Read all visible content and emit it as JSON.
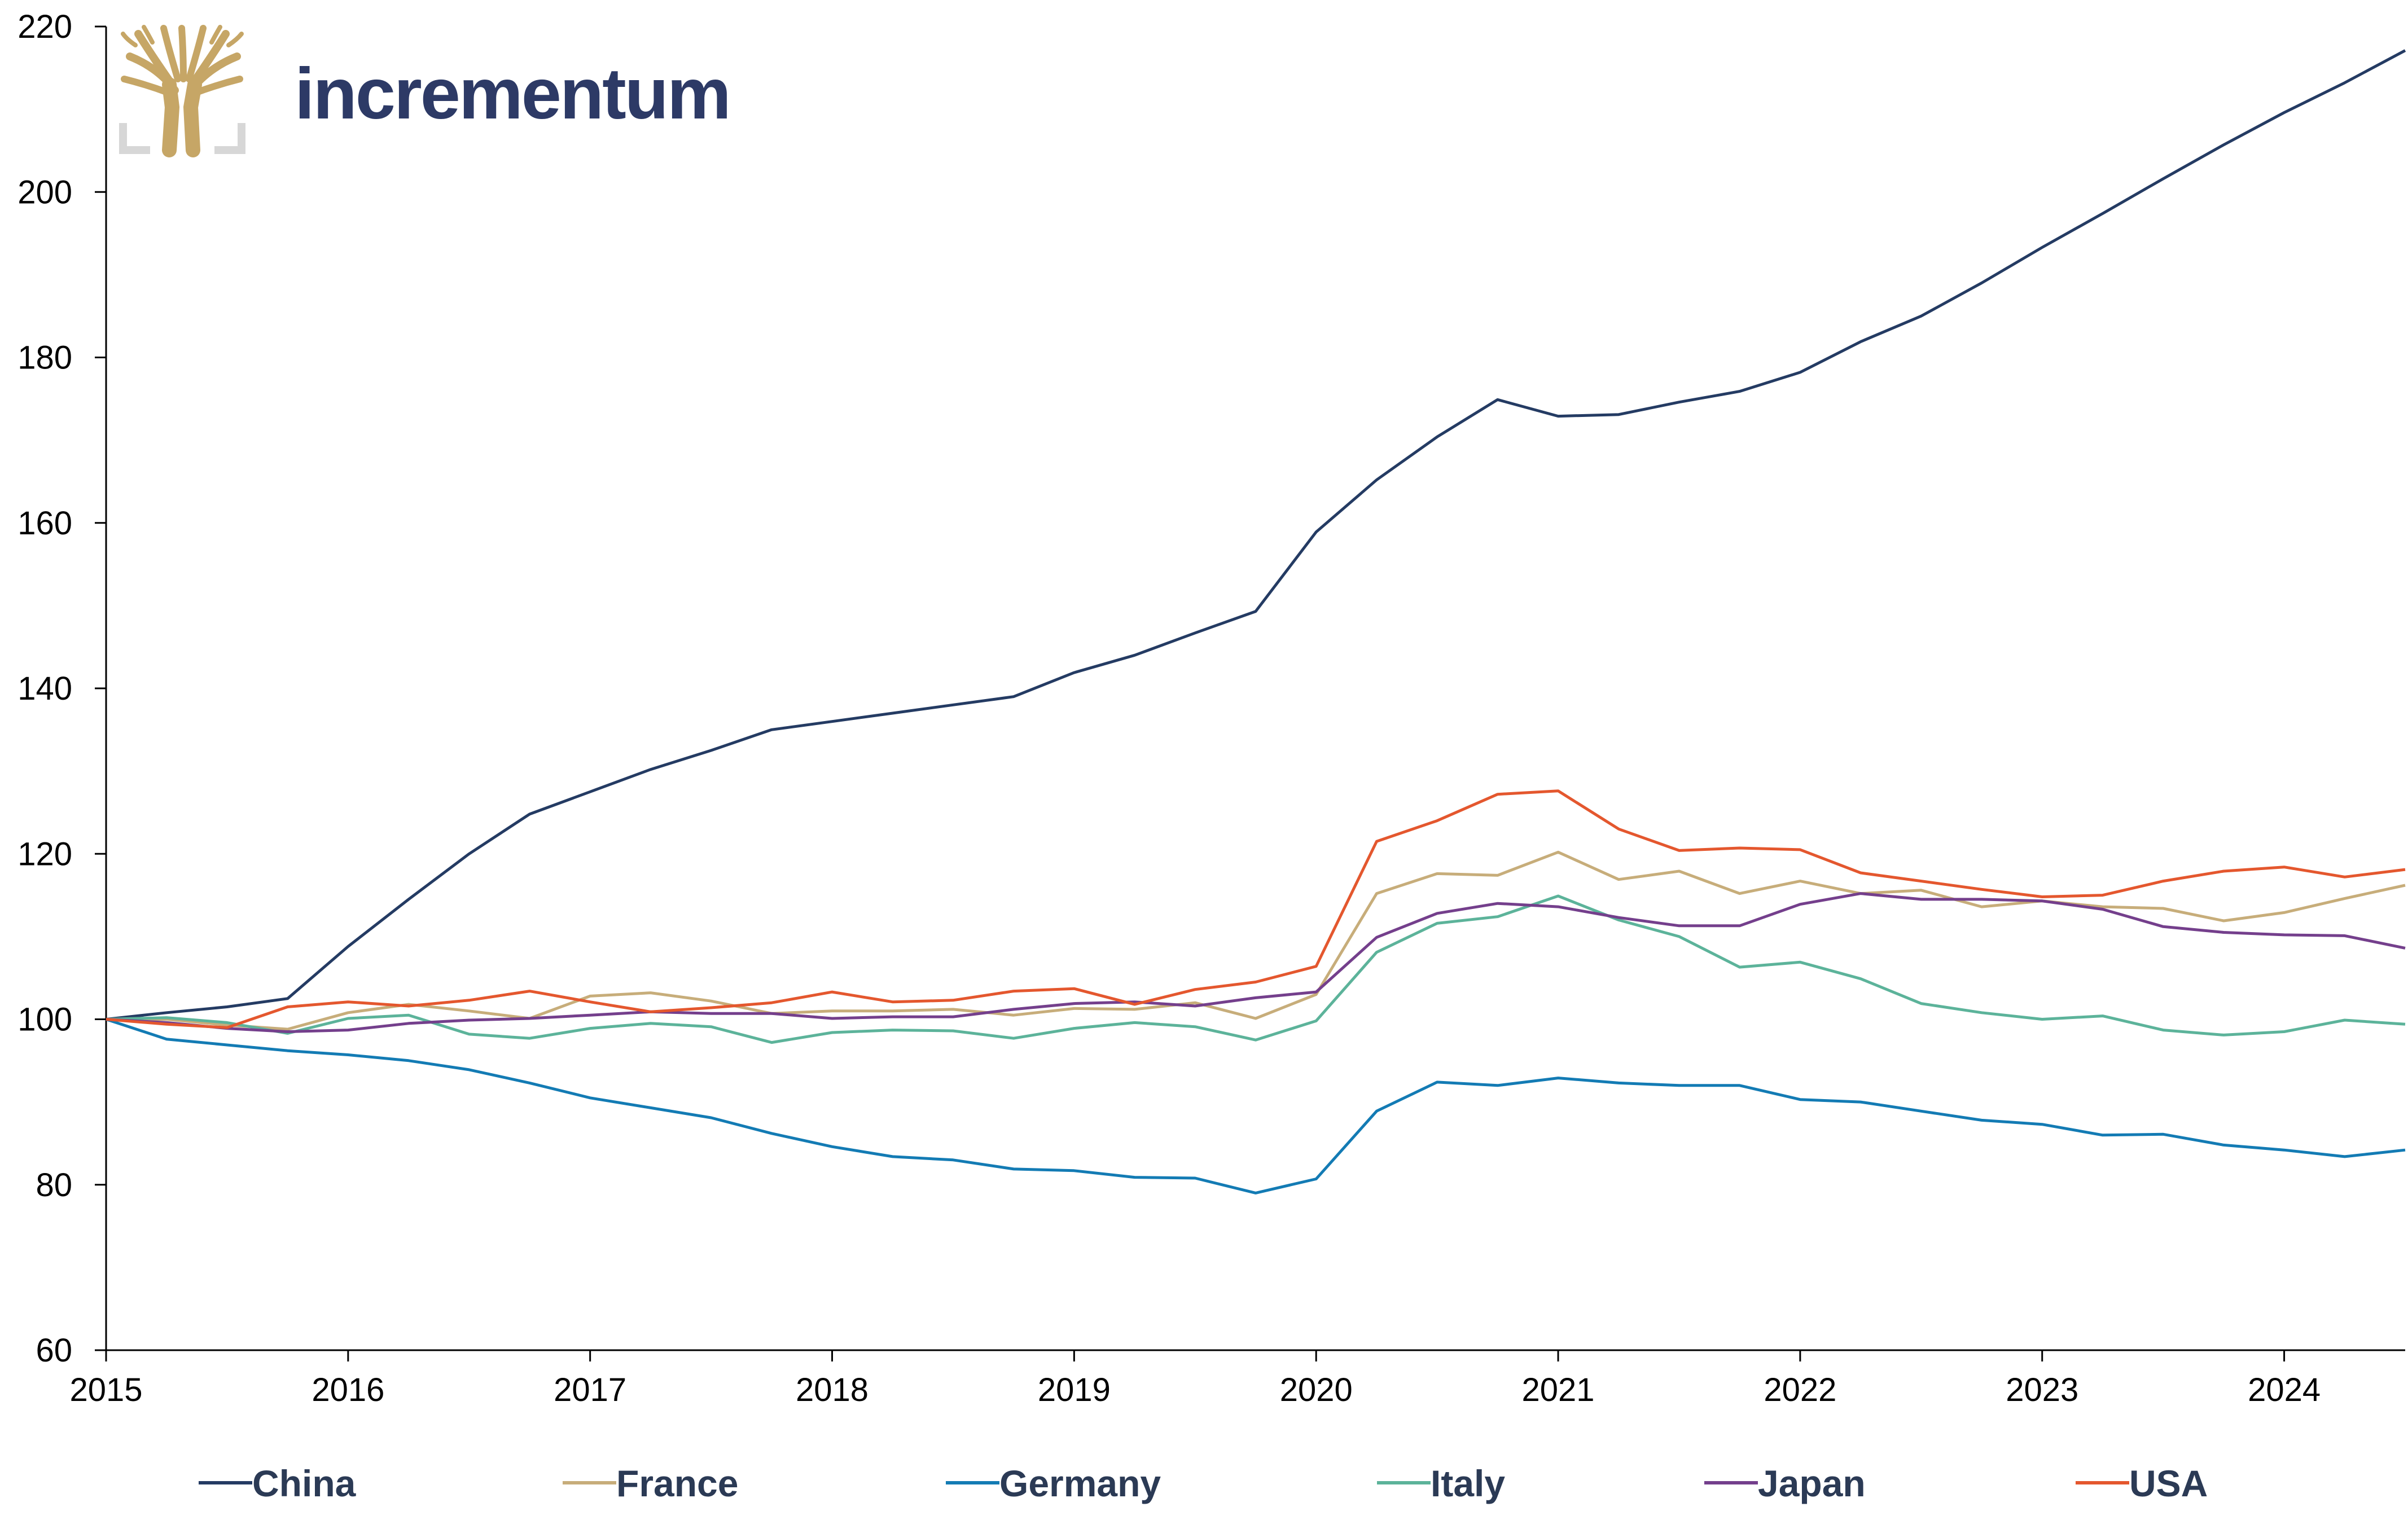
{
  "brand": {
    "name": "incrementum",
    "text_color": "#2d3a66",
    "logo_color": "#c6a666",
    "logo_frame_color": "#d7d7d7",
    "logo_icon": "tree-logo-icon"
  },
  "chart_data": {
    "type": "line",
    "title": "",
    "xlabel": "",
    "ylabel": "",
    "xlim": [
      2015,
      2024.5
    ],
    "ylim": [
      60,
      220
    ],
    "y_ticks": [
      60,
      80,
      100,
      120,
      140,
      160,
      180,
      200,
      220
    ],
    "x_ticks": [
      2015,
      2016,
      2017,
      2018,
      2019,
      2020,
      2021,
      2022,
      2023,
      2024
    ],
    "grid": false,
    "legend_position": "bottom",
    "x": [
      2015,
      2015.25,
      2015.5,
      2015.75,
      2016,
      2016.25,
      2016.5,
      2016.75,
      2017,
      2017.25,
      2017.5,
      2017.75,
      2018,
      2018.25,
      2018.5,
      2018.75,
      2019,
      2019.25,
      2019.5,
      2019.75,
      2020,
      2020.25,
      2020.5,
      2020.75,
      2021,
      2021.25,
      2021.5,
      2021.75,
      2022,
      2022.25,
      2022.5,
      2022.75,
      2023,
      2023.25,
      2023.5,
      2023.75,
      2024,
      2024.25,
      2024.5
    ],
    "series": [
      {
        "name": "China",
        "color": "#243b63",
        "values": [
          100,
          100.8,
          101.5,
          102.5,
          108.8,
          114.5,
          120,
          124.8,
          127.5,
          130.2,
          132.5,
          135,
          136,
          137,
          138,
          139,
          141.9,
          144,
          146.7,
          149.3,
          158.9,
          165.2,
          170.4,
          174.9,
          172.9,
          173.1,
          174.6,
          175.9,
          178.2,
          181.9,
          185,
          189,
          193.3,
          197.4,
          201.6,
          205.7,
          209.6,
          213.2,
          217.1
        ]
      },
      {
        "name": "France",
        "color": "#c7ad7a",
        "values": [
          100,
          100,
          99.3,
          98.8,
          100.8,
          101.8,
          101,
          100.1,
          102.8,
          103.2,
          102.2,
          100.7,
          101,
          101,
          101.2,
          100.5,
          101.3,
          101.2,
          102,
          100.1,
          103,
          115.2,
          117.6,
          117.4,
          120.2,
          116.9,
          117.9,
          115.2,
          116.7,
          115.2,
          115.6,
          113.6,
          114.3,
          113.6,
          113.4,
          111.9,
          112.9,
          114.6,
          116.2
        ]
      },
      {
        "name": "Germany",
        "color": "#137bb4",
        "values": [
          100,
          97.6,
          96.9,
          96.2,
          95.7,
          95,
          93.9,
          92.3,
          90.5,
          89.3,
          88.1,
          86.2,
          84.6,
          83.4,
          83,
          81.9,
          81.7,
          80.9,
          80.8,
          79,
          80.7,
          88.9,
          92.4,
          92,
          92.9,
          92.3,
          92,
          92,
          90.3,
          90,
          88.9,
          87.8,
          87.3,
          86,
          86.1,
          84.8,
          84.2,
          83.4,
          84.2
        ]
      },
      {
        "name": "Italy",
        "color": "#5cb39a",
        "values": [
          100,
          100.2,
          99.6,
          98.3,
          100.1,
          100.5,
          98.2,
          97.7,
          98.9,
          99.5,
          99.1,
          97.2,
          98.4,
          98.7,
          98.6,
          97.7,
          98.9,
          99.6,
          99.1,
          97.5,
          99.8,
          108.1,
          111.6,
          112.4,
          114.9,
          112,
          110,
          106.3,
          106.9,
          104.9,
          101.9,
          100.8,
          100,
          100.4,
          98.7,
          98.1,
          98.5,
          99.9,
          99.4
        ]
      },
      {
        "name": "Japan",
        "color": "#743f8c",
        "values": [
          100,
          99.6,
          98.9,
          98.5,
          98.7,
          99.5,
          99.9,
          100.1,
          100.5,
          100.9,
          100.7,
          100.7,
          100.1,
          100.3,
          100.3,
          101.2,
          101.9,
          102.1,
          101.6,
          102.6,
          103.3,
          109.9,
          112.8,
          114,
          113.6,
          112.3,
          111.3,
          111.3,
          113.9,
          115.2,
          114.5,
          114.5,
          114.3,
          113.3,
          111.2,
          110.5,
          110.2,
          110.1,
          108.6
        ]
      },
      {
        "name": "USA",
        "color": "#e4572e",
        "values": [
          100,
          99.4,
          99,
          101.5,
          102.1,
          101.6,
          102.3,
          103.4,
          102.1,
          100.9,
          101.4,
          102,
          103.3,
          102.1,
          102.3,
          103.4,
          103.7,
          101.8,
          103.6,
          104.5,
          106.4,
          121.5,
          124,
          127.2,
          127.6,
          123,
          120.4,
          120.7,
          120.5,
          117.7,
          116.7,
          115.7,
          114.8,
          115,
          116.7,
          117.9,
          118.4,
          117.2,
          118.1
        ]
      }
    ]
  }
}
